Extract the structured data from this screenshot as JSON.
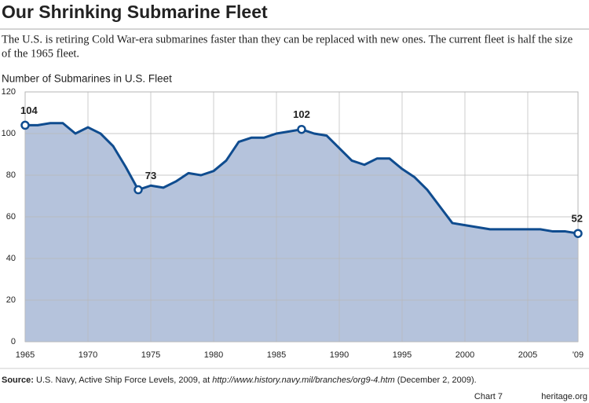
{
  "chart_data": {
    "type": "area",
    "title": "Our Shrinking Submarine Fleet",
    "subtitle": [
      "The U.S. is retiring Cold War-era submarines faster than they can be replaced with new ones. The current fleet is half the size",
      "of the 1965 fleet."
    ],
    "y_label": "Number of Submarines in U.S. Fleet",
    "x": [
      1965,
      1966,
      1967,
      1968,
      1969,
      1970,
      1971,
      1972,
      1973,
      1974,
      1975,
      1976,
      1977,
      1978,
      1979,
      1980,
      1981,
      1982,
      1983,
      1984,
      1985,
      1986,
      1987,
      1988,
      1989,
      1990,
      1991,
      1992,
      1993,
      1994,
      1995,
      1996,
      1997,
      1998,
      1999,
      2000,
      2001,
      2002,
      2003,
      2004,
      2005,
      2006,
      2007,
      2008,
      2009
    ],
    "series": [
      {
        "name": "Submarines",
        "color": "#0f4c8f",
        "fill": "#b5c3dc",
        "values": [
          104,
          104,
          105,
          105,
          100,
          103,
          100,
          94,
          84,
          73,
          75,
          74,
          77,
          81,
          80,
          82,
          87,
          96,
          98,
          98,
          100,
          101,
          102,
          100,
          99,
          93,
          87,
          85,
          88,
          88,
          83,
          79,
          73,
          65,
          57,
          56,
          55,
          54,
          54,
          54,
          54,
          54,
          53,
          53,
          52
        ]
      }
    ],
    "annotations": [
      {
        "x": 1965,
        "value": 104
      },
      {
        "x": 1974,
        "value": 73
      },
      {
        "x": 1987,
        "value": 102
      },
      {
        "x": 2009,
        "value": 52
      }
    ],
    "xlim": [
      1965,
      2009
    ],
    "xticks": [
      1965,
      1970,
      1975,
      1980,
      1985,
      1990,
      1995,
      2000,
      2005,
      {
        "value": 2009,
        "label": "'09"
      }
    ],
    "ylim": [
      0,
      120
    ],
    "yticks": [
      0,
      20,
      40,
      60,
      80,
      100,
      120
    ],
    "grid": true,
    "source_label": "Source:",
    "source_text": "U.S. Navy, Active Ship Force Levels, 2009, at",
    "source_url": "http://www.history.navy.mil/branches/org9-4.htm",
    "source_date": "(December 2, 2009).",
    "chart_number": "Chart 7",
    "site": "heritage.org"
  }
}
